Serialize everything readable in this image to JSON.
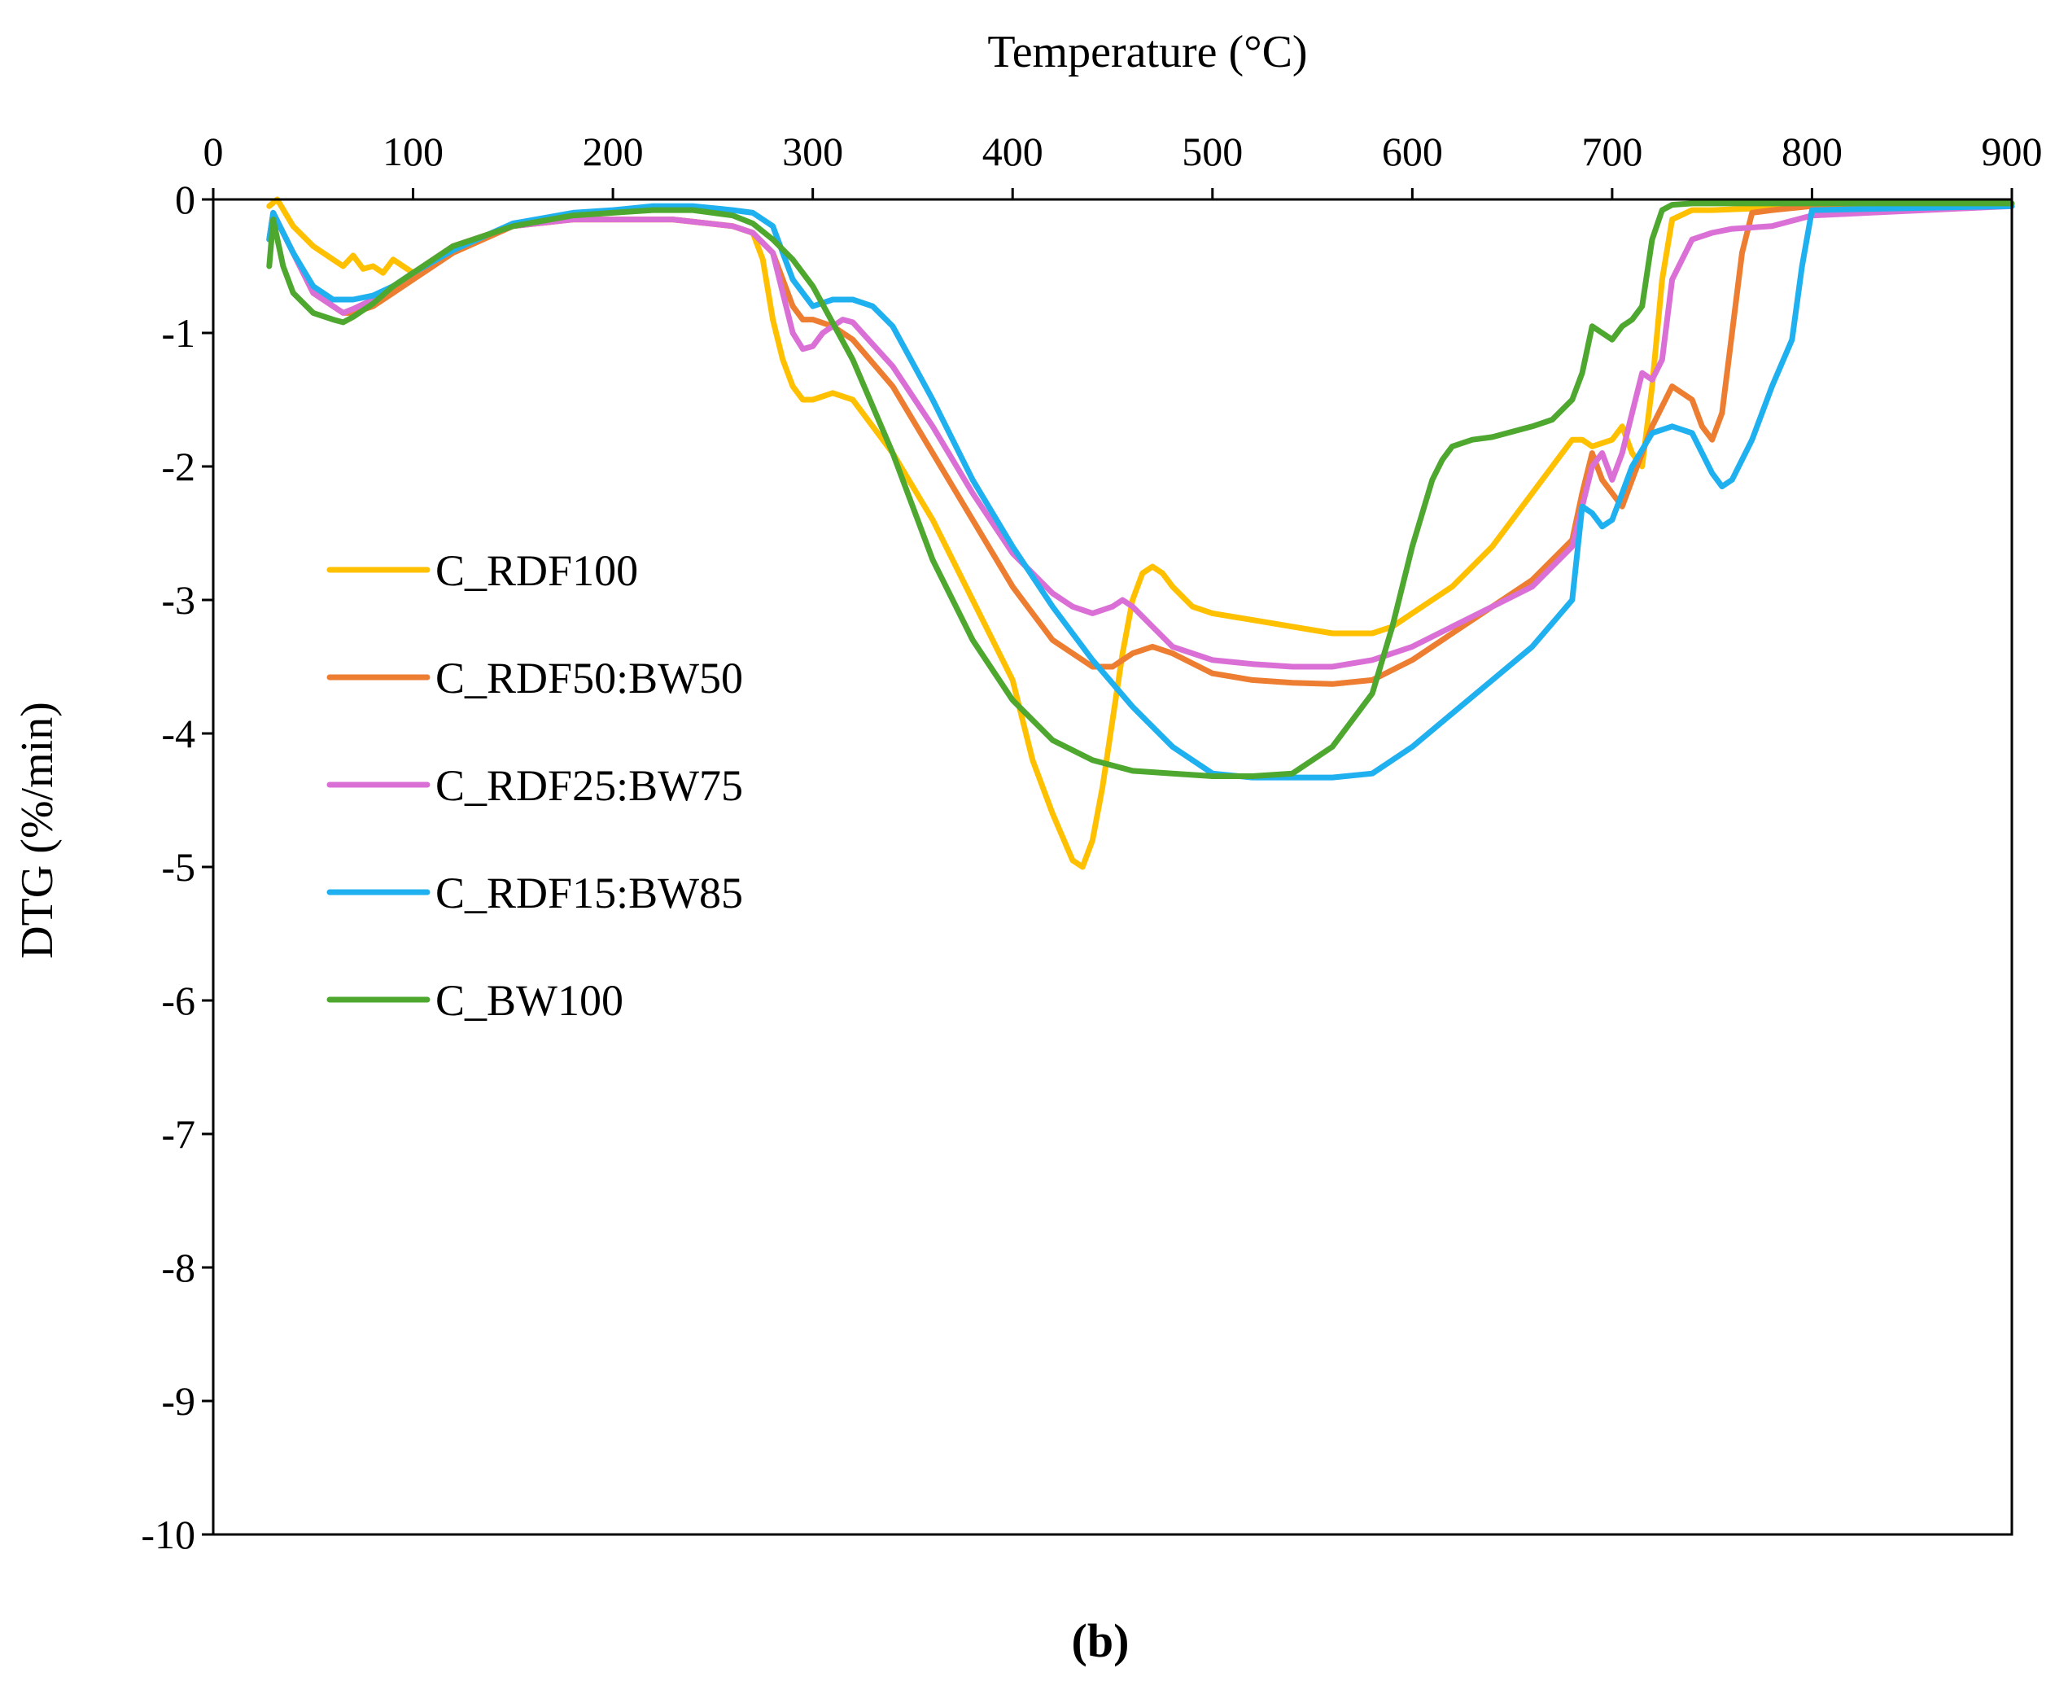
{
  "chart_data": {
    "type": "line",
    "title": "",
    "panel_label": "(b)",
    "xlabel": "Temperature (°C)",
    "ylabel": "DTG (%/min)",
    "xlim": [
      0,
      900
    ],
    "ylim": [
      -10,
      0
    ],
    "x_ticks": [
      "0",
      "100",
      "200",
      "300",
      "400",
      "500",
      "600",
      "700",
      "800",
      "900"
    ],
    "y_ticks": [
      "0",
      "-1",
      "-2",
      "-3",
      "-4",
      "-5",
      "-6",
      "-7",
      "-8",
      "-9",
      "-10"
    ],
    "x_axis_position": "top",
    "grid": false,
    "legend_position": "center-left",
    "series": [
      {
        "name": "C_RDF100",
        "color": "#FFC000",
        "x": [
          28,
          32,
          40,
          50,
          60,
          65,
          70,
          75,
          80,
          85,
          90,
          100,
          120,
          150,
          180,
          200,
          230,
          260,
          270,
          275,
          280,
          285,
          290,
          295,
          300,
          310,
          320,
          340,
          360,
          380,
          400,
          410,
          420,
          430,
          435,
          440,
          445,
          450,
          455,
          460,
          465,
          470,
          475,
          480,
          490,
          500,
          520,
          540,
          560,
          580,
          590,
          600,
          620,
          640,
          660,
          680,
          685,
          690,
          700,
          705,
          710,
          715,
          720,
          725,
          730,
          740,
          750,
          800,
          900
        ],
        "y": [
          -0.05,
          0.0,
          -0.2,
          -0.35,
          -0.45,
          -0.5,
          -0.42,
          -0.52,
          -0.5,
          -0.55,
          -0.45,
          -0.55,
          -0.35,
          -0.2,
          -0.15,
          -0.15,
          -0.15,
          -0.2,
          -0.25,
          -0.45,
          -0.9,
          -1.2,
          -1.4,
          -1.5,
          -1.5,
          -1.45,
          -1.5,
          -1.9,
          -2.4,
          -3.0,
          -3.6,
          -4.2,
          -4.6,
          -4.95,
          -5.0,
          -4.8,
          -4.4,
          -3.9,
          -3.4,
          -3.0,
          -2.8,
          -2.75,
          -2.8,
          -2.9,
          -3.05,
          -3.1,
          -3.15,
          -3.2,
          -3.25,
          -3.25,
          -3.2,
          -3.1,
          -2.9,
          -2.6,
          -2.2,
          -1.8,
          -1.8,
          -1.85,
          -1.8,
          -1.7,
          -1.9,
          -2.0,
          -1.4,
          -0.6,
          -0.15,
          -0.08,
          -0.08,
          -0.05,
          -0.05
        ]
      },
      {
        "name": "C_RDF50:BW50",
        "color": "#ED7D31",
        "x": [
          28,
          30,
          40,
          50,
          60,
          65,
          70,
          80,
          90,
          100,
          120,
          150,
          180,
          200,
          230,
          260,
          270,
          280,
          285,
          290,
          295,
          300,
          310,
          320,
          340,
          360,
          380,
          400,
          420,
          440,
          450,
          455,
          460,
          470,
          480,
          500,
          520,
          540,
          560,
          580,
          600,
          620,
          640,
          660,
          680,
          685,
          690,
          695,
          700,
          705,
          710,
          720,
          730,
          740,
          745,
          750,
          755,
          760,
          765,
          770,
          780,
          800,
          900
        ],
        "y": [
          -0.3,
          -0.1,
          -0.4,
          -0.7,
          -0.8,
          -0.85,
          -0.85,
          -0.8,
          -0.7,
          -0.6,
          -0.4,
          -0.2,
          -0.15,
          -0.15,
          -0.15,
          -0.2,
          -0.25,
          -0.4,
          -0.6,
          -0.8,
          -0.9,
          -0.9,
          -0.95,
          -1.05,
          -1.4,
          -1.9,
          -2.4,
          -2.9,
          -3.3,
          -3.5,
          -3.5,
          -3.45,
          -3.4,
          -3.35,
          -3.4,
          -3.55,
          -3.6,
          -3.62,
          -3.63,
          -3.6,
          -3.45,
          -3.25,
          -3.05,
          -2.85,
          -2.55,
          -2.2,
          -1.9,
          -2.1,
          -2.2,
          -2.3,
          -2.1,
          -1.7,
          -1.4,
          -1.5,
          -1.7,
          -1.8,
          -1.6,
          -1.0,
          -0.4,
          -0.1,
          -0.08,
          -0.05,
          -0.05
        ]
      },
      {
        "name": "C_RDF25:BW75",
        "color": "#DA70D6",
        "x": [
          28,
          30,
          40,
          50,
          60,
          65,
          70,
          80,
          90,
          100,
          120,
          150,
          180,
          200,
          230,
          260,
          270,
          280,
          285,
          290,
          295,
          300,
          305,
          310,
          315,
          320,
          340,
          360,
          380,
          400,
          420,
          430,
          440,
          450,
          455,
          460,
          470,
          480,
          500,
          520,
          540,
          560,
          580,
          600,
          620,
          640,
          660,
          680,
          685,
          690,
          695,
          700,
          705,
          710,
          715,
          720,
          725,
          730,
          740,
          750,
          760,
          780,
          800,
          900
        ],
        "y": [
          -0.3,
          -0.1,
          -0.4,
          -0.7,
          -0.8,
          -0.85,
          -0.82,
          -0.75,
          -0.65,
          -0.55,
          -0.35,
          -0.2,
          -0.15,
          -0.15,
          -0.15,
          -0.2,
          -0.25,
          -0.4,
          -0.7,
          -1.0,
          -1.12,
          -1.1,
          -1.0,
          -0.95,
          -0.9,
          -0.92,
          -1.25,
          -1.7,
          -2.2,
          -2.65,
          -2.95,
          -3.05,
          -3.1,
          -3.05,
          -3.0,
          -3.05,
          -3.2,
          -3.35,
          -3.45,
          -3.48,
          -3.5,
          -3.5,
          -3.45,
          -3.35,
          -3.2,
          -3.05,
          -2.9,
          -2.6,
          -2.3,
          -2.0,
          -1.9,
          -2.1,
          -1.9,
          -1.6,
          -1.3,
          -1.35,
          -1.2,
          -0.6,
          -0.3,
          -0.25,
          -0.22,
          -0.2,
          -0.12,
          -0.05
        ]
      },
      {
        "name": "C_RDF15:BW85",
        "color": "#1FB0F0",
        "x": [
          28,
          30,
          40,
          50,
          60,
          70,
          80,
          90,
          100,
          120,
          150,
          180,
          200,
          220,
          240,
          260,
          270,
          280,
          285,
          290,
          300,
          310,
          320,
          330,
          340,
          360,
          380,
          400,
          420,
          440,
          460,
          480,
          500,
          520,
          540,
          560,
          580,
          600,
          620,
          640,
          660,
          680,
          685,
          690,
          695,
          700,
          705,
          710,
          720,
          730,
          740,
          745,
          750,
          755,
          760,
          770,
          780,
          790,
          795,
          800,
          900
        ],
        "y": [
          -0.3,
          -0.1,
          -0.4,
          -0.65,
          -0.75,
          -0.75,
          -0.72,
          -0.65,
          -0.55,
          -0.38,
          -0.18,
          -0.1,
          -0.08,
          -0.05,
          -0.05,
          -0.08,
          -0.1,
          -0.2,
          -0.4,
          -0.6,
          -0.8,
          -0.75,
          -0.75,
          -0.8,
          -0.95,
          -1.5,
          -2.1,
          -2.6,
          -3.05,
          -3.45,
          -3.8,
          -4.1,
          -4.3,
          -4.33,
          -4.33,
          -4.33,
          -4.3,
          -4.1,
          -3.85,
          -3.6,
          -3.35,
          -3.0,
          -2.3,
          -2.35,
          -2.45,
          -2.4,
          -2.2,
          -2.0,
          -1.75,
          -1.7,
          -1.75,
          -1.9,
          -2.05,
          -2.15,
          -2.1,
          -1.8,
          -1.4,
          -1.05,
          -0.5,
          -0.08,
          -0.05
        ]
      },
      {
        "name": "C_BW100",
        "color": "#4EA72E",
        "x": [
          28,
          30,
          35,
          40,
          50,
          60,
          65,
          70,
          80,
          90,
          100,
          120,
          150,
          180,
          200,
          220,
          240,
          260,
          270,
          280,
          290,
          300,
          320,
          340,
          360,
          380,
          400,
          420,
          440,
          460,
          480,
          500,
          520,
          540,
          560,
          580,
          590,
          600,
          610,
          615,
          620,
          630,
          640,
          660,
          670,
          680,
          685,
          690,
          695,
          700,
          705,
          710,
          715,
          720,
          725,
          730,
          740,
          800,
          900
        ],
        "y": [
          -0.5,
          -0.15,
          -0.5,
          -0.7,
          -0.85,
          -0.9,
          -0.92,
          -0.88,
          -0.78,
          -0.65,
          -0.55,
          -0.35,
          -0.2,
          -0.12,
          -0.1,
          -0.08,
          -0.08,
          -0.12,
          -0.18,
          -0.3,
          -0.45,
          -0.65,
          -1.2,
          -1.9,
          -2.7,
          -3.3,
          -3.75,
          -4.05,
          -4.2,
          -4.28,
          -4.3,
          -4.32,
          -4.32,
          -4.3,
          -4.1,
          -3.7,
          -3.2,
          -2.6,
          -2.1,
          -1.95,
          -1.85,
          -1.8,
          -1.78,
          -1.7,
          -1.65,
          -1.5,
          -1.3,
          -0.95,
          -1.0,
          -1.05,
          -0.95,
          -0.9,
          -0.8,
          -0.3,
          -0.08,
          -0.04,
          -0.03,
          -0.03,
          -0.03
        ]
      }
    ]
  }
}
